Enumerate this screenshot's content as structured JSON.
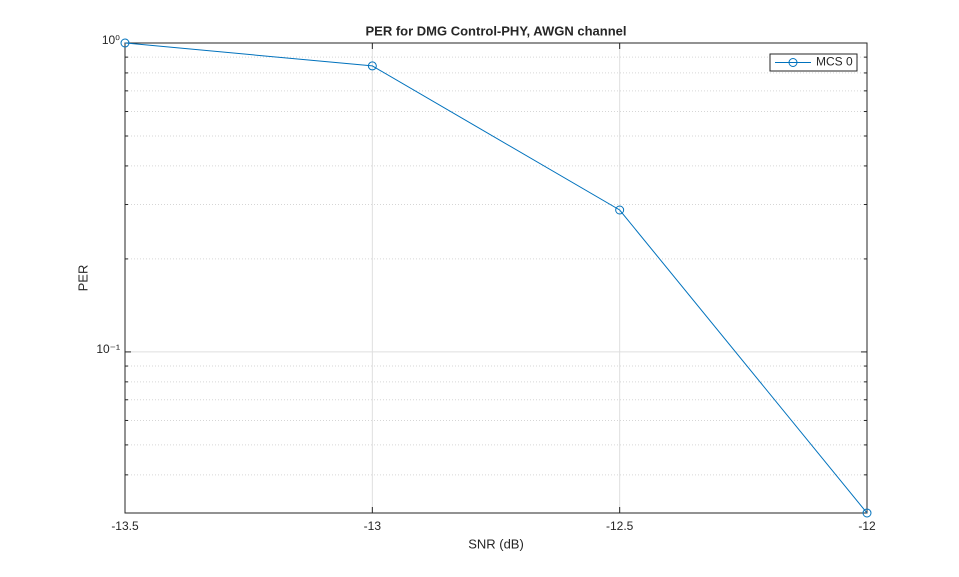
{
  "chart_data": {
    "type": "line",
    "title": "PER for DMG Control-PHY, AWGN channel",
    "x_label": "SNR (dB)",
    "y_label": "PER",
    "x": [
      -13.5,
      -13,
      -12.5,
      -12
    ],
    "series": [
      {
        "name": "MCS 0",
        "color": "#0072bd",
        "values": [
          1,
          0.843,
          0.288,
          0.0301
        ]
      }
    ],
    "xlim": [
      -13.5,
      -12
    ],
    "xticks": [
      -13.5,
      -13,
      -12.5,
      -12
    ],
    "ylim": [
      0.0301,
      1
    ],
    "yticks": [
      {
        "value": 0.1,
        "label": "10⁻¹"
      },
      {
        "value": 1,
        "label": "10⁰"
      }
    ],
    "y_scale": "log",
    "grid": true,
    "minor_grid": true,
    "legend": "upper right",
    "marker": "circle"
  }
}
